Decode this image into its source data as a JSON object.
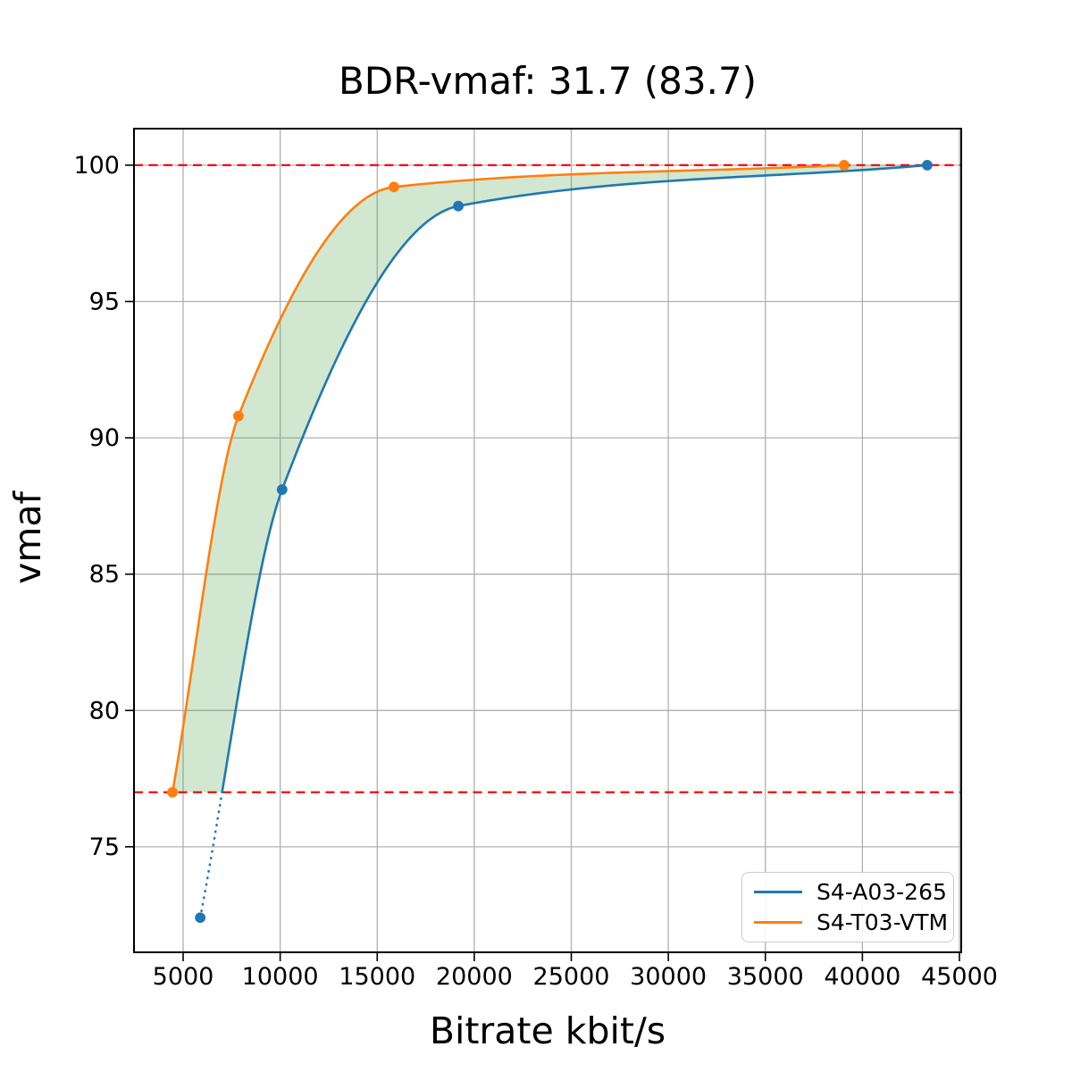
{
  "figure": {
    "background": "#ffffff"
  },
  "chart_data": {
    "type": "line",
    "title": "BDR-vmaf: 31.7 (83.7)",
    "xlabel": "Bitrate kbit/s",
    "ylabel": "vmaf",
    "xlim": [
      2468,
      45092
    ],
    "ylim": [
      71.13,
      101.34
    ],
    "xticks": [
      5000,
      10000,
      15000,
      20000,
      25000,
      30000,
      35000,
      40000,
      45000
    ],
    "yticks": [
      75,
      80,
      85,
      90,
      95,
      100
    ],
    "grid": true,
    "grid_color": "#b0b0b0",
    "axis_color": "#000000",
    "tick_label_color": "#000000",
    "legend": {
      "position": "lower-right"
    },
    "series": [
      {
        "name": "S4-A03-265",
        "color": "#1f77b4",
        "marker": "circle",
        "points": [
          [
            5880,
            72.4
          ],
          [
            10100,
            88.1
          ],
          [
            19180,
            98.5
          ],
          [
            43340,
            100.0
          ]
        ],
        "dotted_below_y": 77.0
      },
      {
        "name": "S4-T03-VTM",
        "color": "#ff7f0e",
        "marker": "circle",
        "points": [
          [
            4450,
            77.0
          ],
          [
            7850,
            90.8
          ],
          [
            15860,
            99.2
          ],
          [
            39060,
            100.0
          ]
        ]
      }
    ],
    "ref_lines": [
      {
        "y": 100.0,
        "color": "#ff0000",
        "style": "dashed"
      },
      {
        "y": 77.0,
        "color": "#ff0000",
        "style": "dashed"
      }
    ],
    "shaded_region": {
      "between": [
        "S4-T03-VTM",
        "S4-A03-265"
      ],
      "y_min": 77.0,
      "y_max": 100.0,
      "color": "#4d9e3f",
      "opacity": 0.25
    }
  }
}
